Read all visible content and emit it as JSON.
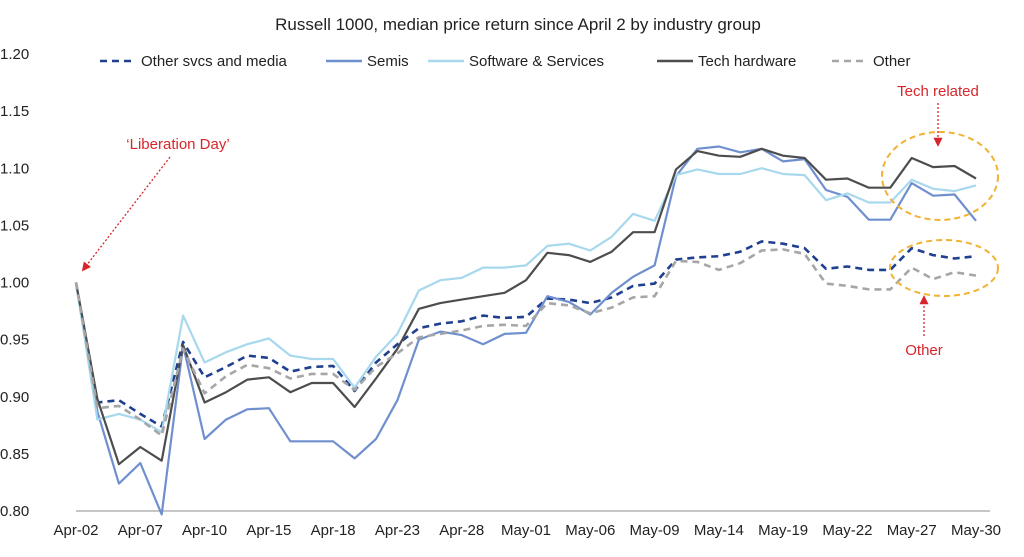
{
  "chart_data": {
    "type": "line",
    "title": "Russell 1000, median price return since April 2 by industry group",
    "xlabel": "",
    "ylabel": "",
    "ylim": [
      0.8,
      1.2
    ],
    "yticks": [
      "0.80",
      "0.85",
      "0.90",
      "0.95",
      "1.00",
      "1.05",
      "1.10",
      "1.15",
      "1.20"
    ],
    "xtick_labels": [
      "Apr-02",
      "Apr-07",
      "Apr-10",
      "Apr-15",
      "Apr-18",
      "Apr-23",
      "Apr-28",
      "May-01",
      "May-06",
      "May-09",
      "May-14",
      "May-19",
      "May-22",
      "May-27",
      "May-30"
    ],
    "x": [
      "Apr-02",
      "Apr-03",
      "Apr-04",
      "Apr-07",
      "Apr-08",
      "Apr-09",
      "Apr-10",
      "Apr-11",
      "Apr-14",
      "Apr-15",
      "Apr-16",
      "Apr-17",
      "Apr-18",
      "Apr-21",
      "Apr-22",
      "Apr-23",
      "Apr-24",
      "Apr-25",
      "Apr-28",
      "Apr-29",
      "Apr-30",
      "May-01",
      "May-02",
      "May-05",
      "May-06",
      "May-07",
      "May-08",
      "May-09",
      "May-12",
      "May-13",
      "May-14",
      "May-15",
      "May-16",
      "May-19",
      "May-20",
      "May-21",
      "May-22",
      "May-23",
      "May-26",
      "May-27",
      "May-28",
      "May-29",
      "May-30"
    ],
    "grid": false,
    "legend_position": "top",
    "series": [
      {
        "name": "Other svcs and media",
        "color": "#1f3f8f",
        "style": "dashed",
        "values": [
          1.0,
          0.895,
          0.897,
          0.885,
          0.874,
          0.948,
          0.917,
          0.926,
          0.936,
          0.934,
          0.922,
          0.926,
          0.927,
          0.905,
          0.93,
          0.946,
          0.96,
          0.964,
          0.966,
          0.971,
          0.969,
          0.97,
          0.986,
          0.985,
          0.982,
          0.987,
          0.997,
          0.999,
          1.02,
          1.022,
          1.023,
          1.027,
          1.036,
          1.034,
          1.03,
          1.012,
          1.014,
          1.011,
          1.011,
          1.03,
          1.024,
          1.021,
          1.023
        ]
      },
      {
        "name": "Semis",
        "color": "#6f8fcf",
        "style": "solid",
        "values": [
          1.0,
          0.887,
          0.824,
          0.842,
          0.797,
          0.945,
          0.863,
          0.88,
          0.889,
          0.89,
          0.861,
          0.861,
          0.861,
          0.846,
          0.863,
          0.897,
          0.95,
          0.957,
          0.954,
          0.946,
          0.955,
          0.956,
          0.988,
          0.983,
          0.972,
          0.991,
          1.005,
          1.015,
          1.093,
          1.117,
          1.119,
          1.114,
          1.117,
          1.106,
          1.108,
          1.081,
          1.075,
          1.055,
          1.055,
          1.087,
          1.076,
          1.077,
          1.054
        ]
      },
      {
        "name": "Software & Services",
        "color": "#a7d8ed",
        "style": "solid",
        "values": [
          1.0,
          0.88,
          0.885,
          0.88,
          0.869,
          0.971,
          0.93,
          0.939,
          0.946,
          0.951,
          0.936,
          0.933,
          0.933,
          0.908,
          0.935,
          0.955,
          0.993,
          1.002,
          1.004,
          1.013,
          1.013,
          1.015,
          1.032,
          1.034,
          1.028,
          1.04,
          1.06,
          1.054,
          1.094,
          1.099,
          1.095,
          1.095,
          1.1,
          1.095,
          1.094,
          1.072,
          1.078,
          1.07,
          1.07,
          1.09,
          1.082,
          1.08,
          1.085
        ]
      },
      {
        "name": "Tech hardware",
        "color": "#4d4d4d",
        "style": "solid",
        "values": [
          1.0,
          0.898,
          0.841,
          0.856,
          0.844,
          0.945,
          0.895,
          0.904,
          0.915,
          0.917,
          0.904,
          0.912,
          0.912,
          0.891,
          0.916,
          0.942,
          0.977,
          0.982,
          0.985,
          0.988,
          0.991,
          1.002,
          1.026,
          1.024,
          1.018,
          1.027,
          1.044,
          1.044,
          1.099,
          1.115,
          1.111,
          1.11,
          1.117,
          1.111,
          1.109,
          1.09,
          1.091,
          1.083,
          1.083,
          1.109,
          1.101,
          1.102,
          1.091
        ]
      },
      {
        "name": "Other",
        "color": "#a6a6a6",
        "style": "dashed",
        "values": [
          1.0,
          0.89,
          0.892,
          0.88,
          0.866,
          0.942,
          0.903,
          0.918,
          0.928,
          0.925,
          0.916,
          0.92,
          0.92,
          0.906,
          0.926,
          0.938,
          0.952,
          0.955,
          0.958,
          0.962,
          0.963,
          0.962,
          0.982,
          0.98,
          0.973,
          0.978,
          0.987,
          0.988,
          1.019,
          1.018,
          1.011,
          1.017,
          1.028,
          1.029,
          1.025,
          0.999,
          0.997,
          0.994,
          0.994,
          1.013,
          1.003,
          1.009,
          1.006
        ]
      }
    ],
    "annotations": [
      {
        "text": "‘Liberation Day’",
        "color": "#d7262b"
      },
      {
        "text": "Tech related",
        "color": "#d7262b"
      },
      {
        "text": "Other",
        "color": "#d7262b"
      }
    ],
    "highlight_color": "#f2b233"
  }
}
